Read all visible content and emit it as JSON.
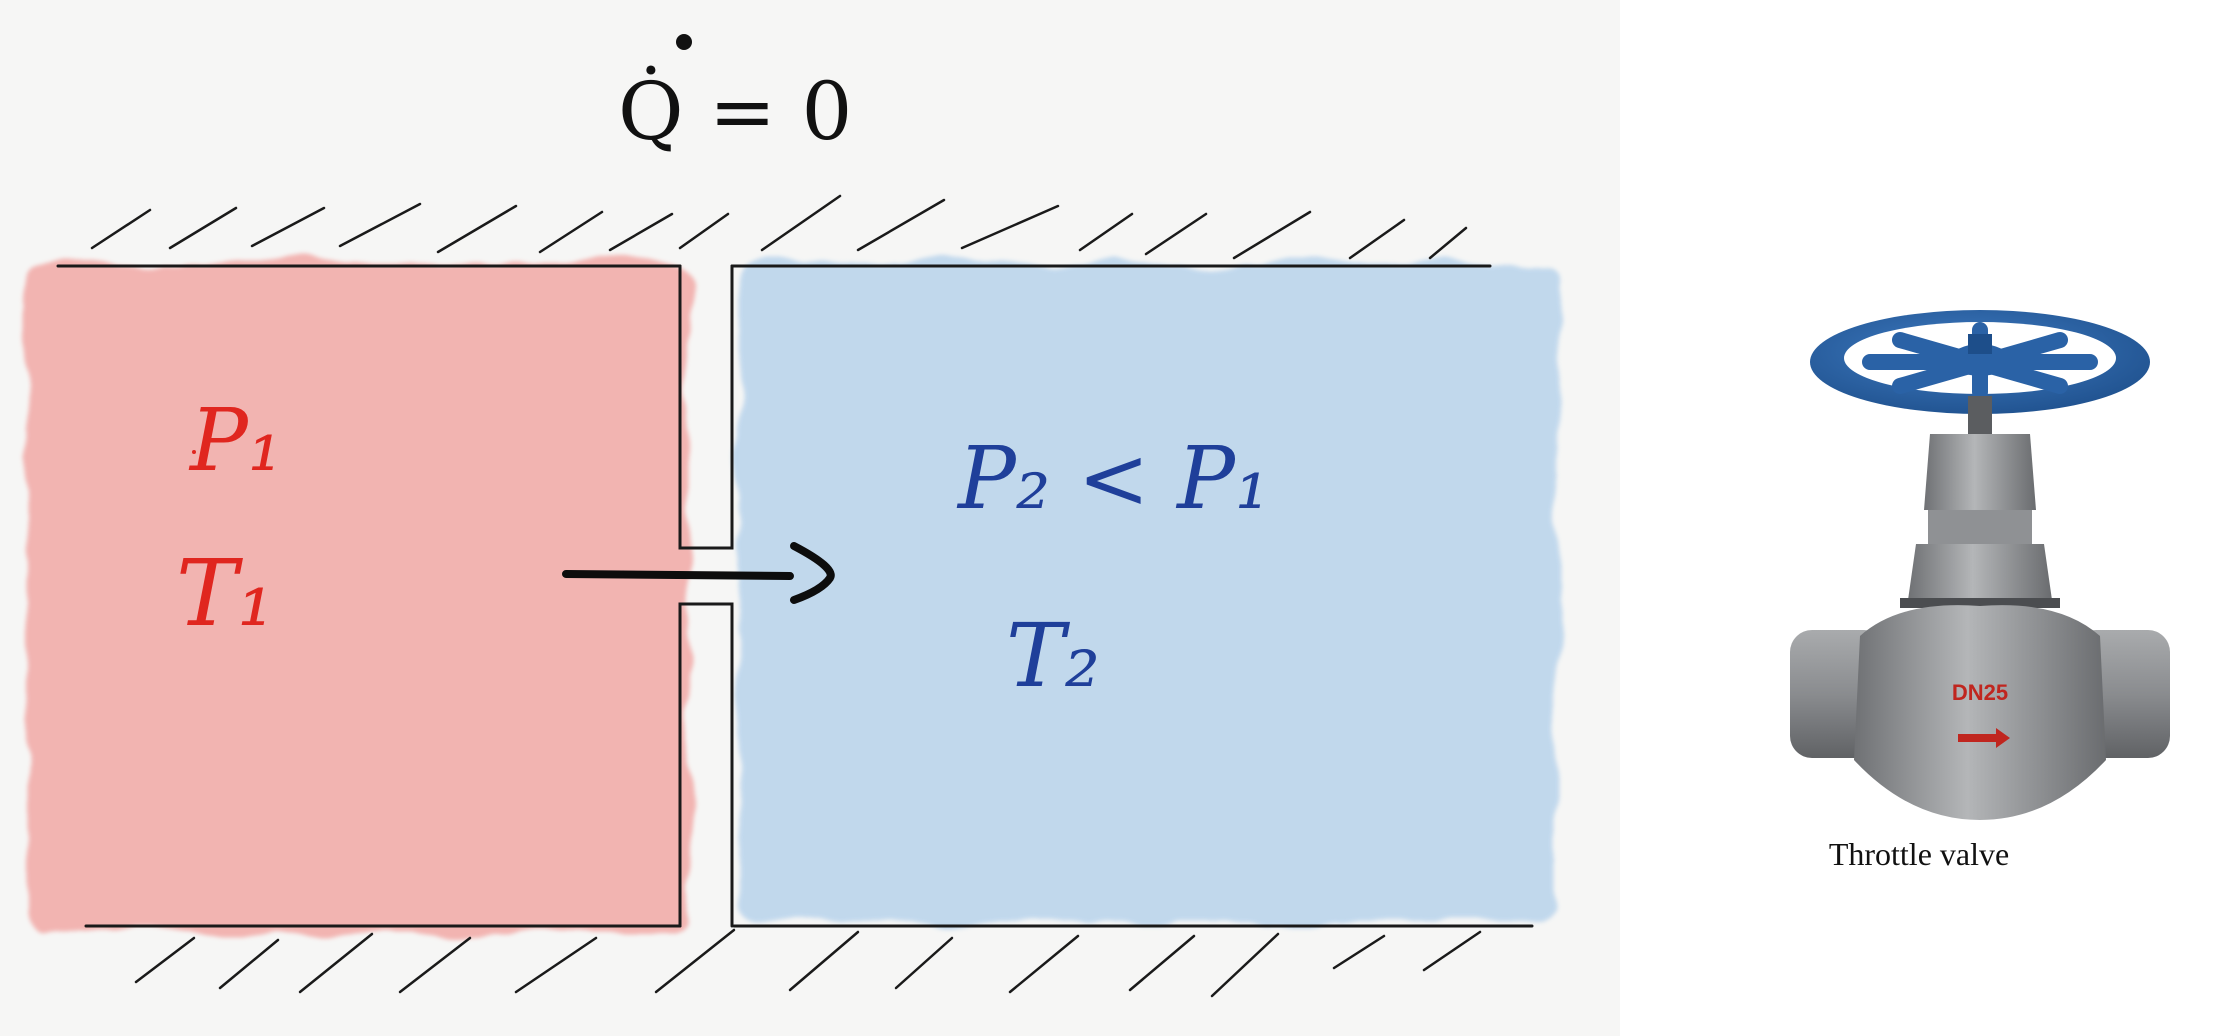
{
  "diagram": {
    "heat_flow_label": "Q̇ = 0",
    "left_chamber": {
      "pressure": "P₁",
      "temperature": "T₁",
      "color": "#f2a9a6"
    },
    "right_chamber": {
      "pressure": "P₂ < P₁",
      "temperature": "T₂",
      "color": "#bcd5ec"
    },
    "flow_direction": "left-to-right"
  },
  "valve_figure": {
    "caption": "Throttle valve",
    "body_marking": "DN25",
    "handwheel_color": "#2a62a6",
    "body_color": "#8d8f92"
  }
}
